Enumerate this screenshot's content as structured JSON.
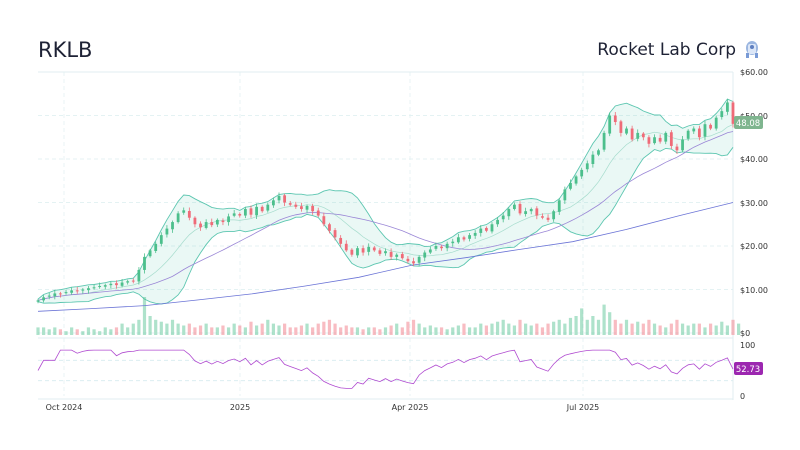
{
  "header": {
    "ticker": "RKLB",
    "company": "Rocket Lab Corp"
  },
  "colors": {
    "up": "#4cbf8c",
    "down": "#ef6b78",
    "band": "#5cc6b0",
    "band_fill": "rgba(92,198,176,0.13)",
    "mid": "#a6dccd",
    "sma_mid": "#9a86d6",
    "sma_long": "#6b74d6",
    "rsi": "#b04bd0",
    "last_price_bg": "#7fb58f",
    "rsi_label_bg": "#9c27b0"
  },
  "chart_data": {
    "type": "candlestick",
    "price_axis": {
      "ylim": [
        0,
        60
      ],
      "ticks": [
        "$0",
        "$10.00",
        "$20.00",
        "$30.00",
        "$40.00",
        "$50.00",
        "$60.00"
      ]
    },
    "rsi_axis": {
      "ylim": [
        0,
        100
      ],
      "ticks": [
        "0",
        "100"
      ]
    },
    "x_ticks": [
      "Oct 2024",
      "2025",
      "Apr 2025",
      "Jul 2025"
    ],
    "last_price": "48.08",
    "last_rsi": "52.73",
    "closes": [
      7.5,
      8.2,
      8.6,
      9.1,
      9.0,
      9.4,
      9.8,
      9.6,
      10.0,
      10.3,
      10.5,
      10.8,
      11.0,
      11.3,
      11.0,
      11.6,
      11.9,
      12.0,
      14.5,
      17.5,
      19.0,
      20.5,
      22.5,
      24.0,
      25.5,
      27.5,
      28.2,
      26.5,
      25.0,
      24.3,
      25.5,
      24.8,
      26.0,
      25.5,
      26.8,
      27.5,
      27.0,
      28.5,
      27.2,
      29.0,
      28.0,
      29.5,
      30.5,
      31.5,
      30.0,
      29.5,
      29.0,
      28.5,
      29.2,
      28.0,
      27.0,
      25.0,
      23.5,
      22.0,
      20.5,
      19.0,
      18.0,
      19.5,
      18.5,
      19.8,
      19.0,
      18.2,
      18.8,
      17.5,
      18.0,
      17.2,
      16.5,
      16.0,
      17.5,
      18.5,
      19.2,
      20.0,
      19.5,
      20.5,
      21.0,
      22.0,
      21.5,
      22.5,
      23.0,
      24.0,
      23.5,
      25.0,
      26.0,
      27.0,
      28.5,
      29.5,
      27.5,
      28.0,
      28.5,
      27.0,
      26.5,
      26.0,
      28.0,
      30.5,
      33.0,
      34.5,
      36.0,
      37.5,
      39.0,
      41.0,
      42.0,
      46.0,
      50.0,
      48.5,
      46.0,
      47.0,
      44.5,
      46.0,
      45.0,
      43.5,
      45.0,
      44.0,
      46.0,
      43.0,
      42.0,
      44.5,
      46.5,
      47.0,
      45.0,
      48.0,
      47.0,
      49.5,
      51.0,
      53.0,
      48.08
    ],
    "volumes": [
      2,
      2,
      1.5,
      2,
      1.5,
      1,
      2,
      1.5,
      1,
      2,
      1.5,
      1,
      2,
      1.5,
      2,
      3,
      2,
      3,
      4,
      10,
      5,
      4,
      3.5,
      3,
      4,
      3,
      2.5,
      3,
      2,
      2.5,
      3,
      2,
      2,
      2.5,
      2,
      3,
      2.5,
      2,
      3.5,
      2.5,
      3,
      4,
      3,
      2.5,
      3,
      2,
      2,
      2.5,
      3,
      2,
      3,
      3.5,
      4,
      3,
      2,
      2.5,
      2,
      2,
      1.5,
      2,
      2,
      1.5,
      2,
      2.5,
      3,
      2,
      3.5,
      4,
      3,
      2,
      2.5,
      2,
      2,
      1.5,
      2,
      2.5,
      3,
      2,
      2,
      3,
      2.5,
      3,
      3.5,
      4,
      3,
      2.5,
      4,
      3,
      2.5,
      3,
      2,
      3,
      3.5,
      4,
      3,
      4.5,
      5,
      7,
      4,
      5,
      4,
      8,
      6,
      4,
      3,
      4,
      3,
      3.5,
      3,
      4,
      3,
      2.5,
      2,
      3,
      4,
      3,
      2.5,
      3,
      3,
      2,
      3,
      2.5,
      3.5,
      2.5,
      4,
      3
    ],
    "sma_long": [
      5.0,
      5.6,
      6.3,
      7.6,
      9.0,
      10.8,
      12.8,
      15.6,
      17.3,
      19.2,
      21.0,
      23.8,
      27.0,
      30.0
    ]
  }
}
